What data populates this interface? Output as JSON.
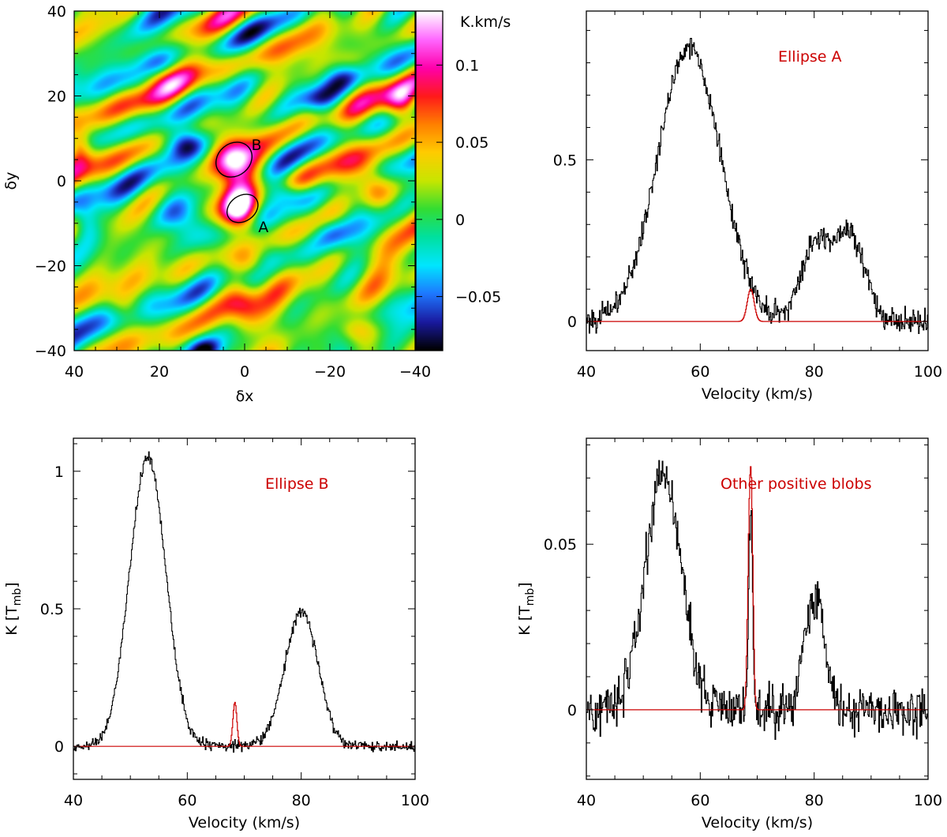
{
  "chart_data": [
    {
      "type": "heatmap",
      "xlabel": "δx",
      "ylabel": "δy",
      "xlim": [
        40,
        -40
      ],
      "ylim": [
        -40,
        40
      ],
      "xticks": [
        40,
        20,
        0,
        -20,
        -40
      ],
      "yticks": [
        -40,
        -20,
        0,
        20,
        40
      ],
      "colorbar": {
        "unit": "K.km/s",
        "range": [
          -0.085,
          0.135
        ],
        "ticks": [
          -0.05,
          0,
          0.05,
          0.1
        ],
        "colors": [
          "#000000",
          "#1a1aa0",
          "#1e78ff",
          "#00e6ff",
          "#00e0a0",
          "#33dd33",
          "#c8e600",
          "#ffcc00",
          "#ff8000",
          "#ff1a1a",
          "#ff00aa",
          "#ff66ff",
          "#ffffff"
        ]
      },
      "background_colors": [
        "#3cdca0",
        "#3ce6b4",
        "#46e6d2",
        "#5ae678",
        "#3cd2e6"
      ],
      "blobs": [
        {
          "x": 3,
          "y": 5,
          "sx": 3.5,
          "sy": 4.5,
          "value": 0.125
        },
        {
          "x": 1,
          "y": -7,
          "sx": 3,
          "sy": 3.5,
          "value": 0.12
        },
        {
          "x": 0.5,
          "y": -29,
          "sx": 3,
          "sy": 4,
          "value": 0.075
        },
        {
          "x": -30,
          "y": -1,
          "sx": 3,
          "sy": 3.5,
          "value": 0.09
        },
        {
          "x": -37,
          "y": 18,
          "sx": 3,
          "sy": 3,
          "value": 0.085
        },
        {
          "x": 39,
          "y": 8,
          "sx": 2,
          "sy": 3,
          "value": 0.065
        },
        {
          "x": -2,
          "y": -20,
          "sx": 3,
          "sy": 2.5,
          "value": 0.055
        },
        {
          "x": 14,
          "y": 9,
          "sx": 3.5,
          "sy": 2.5,
          "value": -0.07
        },
        {
          "x": 14,
          "y": -9,
          "sx": 4,
          "sy": 3.5,
          "value": -0.075
        },
        {
          "x": -10,
          "y": -3,
          "sx": 3,
          "sy": 2,
          "value": -0.05
        },
        {
          "x": 9,
          "y": -40,
          "sx": 3,
          "sy": 2,
          "value": -0.06
        },
        {
          "x": -17,
          "y": 19,
          "sx": 3,
          "sy": 2,
          "value": -0.035
        },
        {
          "x": 37,
          "y": -10,
          "sx": 2,
          "sy": 3,
          "value": -0.04
        },
        {
          "x": -25,
          "y": 28,
          "sx": 3,
          "sy": 2,
          "value": 0.04
        },
        {
          "x": 22,
          "y": 25,
          "sx": 3,
          "sy": 2,
          "value": 0.03
        },
        {
          "x": -20,
          "y": -12,
          "sx": 3,
          "sy": 2.5,
          "value": -0.035
        },
        {
          "x": 28,
          "y": -30,
          "sx": 3,
          "sy": 2.5,
          "value": 0.035
        },
        {
          "x": -26,
          "y": -35,
          "sx": 3,
          "sy": 2,
          "value": 0.04
        }
      ],
      "regions": [
        {
          "label": "B",
          "cx": 2.5,
          "cy": 5,
          "rx": 4.5,
          "ry": 3.8,
          "angle_deg": -40
        },
        {
          "label": "A",
          "cx": 0.5,
          "cy": -6.5,
          "rx": 3.9,
          "ry": 3,
          "angle_deg": -35
        }
      ]
    },
    {
      "type": "line",
      "title": "Ellipse A",
      "xlabel": "Velocity (km/s)",
      "ylabel": "",
      "xlim": [
        40,
        100
      ],
      "ylim": [
        -0.09,
        0.96
      ],
      "xticks": [
        40,
        60,
        80,
        100
      ],
      "yticks": [
        0,
        0.5
      ],
      "series": [
        {
          "color": "#000000",
          "components": [
            {
              "center": 58,
              "amp": 0.85,
              "sigma": 5.5
            },
            {
              "center": 80,
              "amp": 0.22,
              "sigma": 2.5
            },
            {
              "center": 86,
              "amp": 0.27,
              "sigma": 2.8
            }
          ],
          "noise": 0.028
        },
        {
          "color": "#cc0000",
          "components": [
            {
              "center": 68.8,
              "amp": 0.1,
              "sigma": 0.6
            }
          ],
          "noise": 0
        }
      ]
    },
    {
      "type": "line",
      "title": "Ellipse B",
      "xlabel": "Velocity (km/s)",
      "ylabel": "K  [T",
      "ylabel_sub": "mb",
      "ylabel_end": "]",
      "xlim": [
        40,
        100
      ],
      "ylim": [
        -0.12,
        1.12
      ],
      "xticks": [
        40,
        60,
        80,
        100
      ],
      "yticks": [
        0,
        0.5,
        1
      ],
      "series": [
        {
          "color": "#000000",
          "components": [
            {
              "center": 53,
              "amp": 1.05,
              "sigma": 3.2
            },
            {
              "center": 80,
              "amp": 0.49,
              "sigma": 2.9
            }
          ],
          "noise": 0.016
        },
        {
          "color": "#cc0000",
          "components": [
            {
              "center": 68.3,
              "amp": 0.16,
              "sigma": 0.35
            }
          ],
          "noise": 0
        }
      ]
    },
    {
      "type": "line",
      "title": "Other positive blobs",
      "xlabel": "Velocity (km/s)",
      "ylabel": "K  [T",
      "ylabel_sub": "mb",
      "ylabel_end": "]",
      "xlim": [
        40,
        100
      ],
      "ylim": [
        -0.021,
        0.082
      ],
      "xticks": [
        40,
        60,
        80,
        100
      ],
      "yticks": [
        0,
        0.05
      ],
      "series": [
        {
          "color": "#000000",
          "components": [
            {
              "center": 53.5,
              "amp": 0.072,
              "sigma": 3.2
            },
            {
              "center": 80,
              "amp": 0.033,
              "sigma": 1.8
            },
            {
              "center": 68.8,
              "amp": 0.058,
              "sigma": 0.35
            }
          ],
          "noise": 0.0055
        },
        {
          "color": "#cc0000",
          "components": [
            {
              "center": 68.5,
              "amp": 0.041,
              "sigma": 0.3
            },
            {
              "center": 68.95,
              "amp": 0.055,
              "sigma": 0.3
            }
          ],
          "noise": 0
        }
      ]
    }
  ]
}
